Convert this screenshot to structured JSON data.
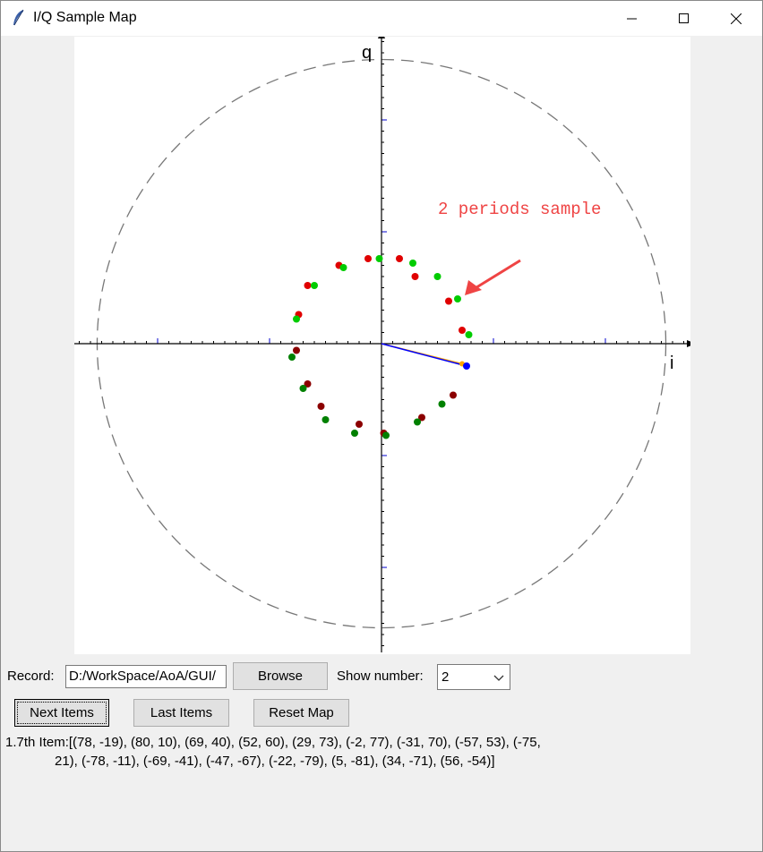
{
  "window": {
    "title": "I/Q Sample Map",
    "icon": "feather-icon",
    "controls": [
      "minimize-icon",
      "maximize-icon",
      "close-icon"
    ]
  },
  "plot": {
    "y_axis_label": "q",
    "x_axis_label": "i",
    "annotation": "2 periods sample",
    "annotation_color": "#ef4444",
    "circle_color": "#777777",
    "tick_color": "#0000cc",
    "vector_color": "#0000ff",
    "vector_tail_color": "#ffa500"
  },
  "chart_data": {
    "type": "scatter",
    "title": "",
    "xlabel": "i",
    "ylabel": "q",
    "xlim": [
      -138,
      138
    ],
    "ylim": [
      -138,
      138
    ],
    "reference_circle_radius": 127,
    "series": [
      {
        "color_group": "red",
        "points": [
          [
            36,
            6
          ],
          [
            30,
            19
          ],
          [
            15,
            30
          ],
          [
            8,
            38
          ],
          [
            -6,
            38
          ],
          [
            -19,
            35
          ],
          [
            -33,
            26
          ],
          [
            -37,
            13
          ],
          [
            -38,
            -3
          ],
          [
            -33,
            -18
          ],
          [
            -27,
            -28
          ],
          [
            -10,
            -36
          ],
          [
            1,
            -40
          ],
          [
            18,
            -33
          ],
          [
            32,
            -23
          ]
        ]
      },
      {
        "color_group": "green",
        "points": [
          [
            39,
            4
          ],
          [
            34,
            20
          ],
          [
            25,
            30
          ],
          [
            14,
            36
          ],
          [
            -1,
            38
          ],
          [
            -17,
            34
          ],
          [
            -30,
            26
          ],
          [
            -38,
            11
          ],
          [
            -40,
            -6
          ],
          [
            -35,
            -20
          ],
          [
            -25,
            -34
          ],
          [
            -12,
            -40
          ],
          [
            2,
            -41
          ],
          [
            16,
            -35
          ],
          [
            27,
            -27
          ]
        ]
      }
    ],
    "vector": {
      "from": [
        0,
        0
      ],
      "to": [
        38,
        -10
      ]
    }
  },
  "controls": {
    "record_label": "Record:",
    "record_value": "D:/WorkSpace/AoA/GUI/",
    "browse_label": "Browse",
    "show_number_label": "Show number:",
    "show_number_value": "2",
    "next_items_label": "Next Items",
    "last_items_label": "Last Items",
    "reset_map_label": "Reset Map"
  },
  "info": {
    "line1": "1.7th Item:[(78, -19), (80, 10), (69, 40), (52, 60), (29, 73), (-2, 77), (-31, 70), (-57, 53), (-75,",
    "line2": "21), (-78, -11), (-69, -41), (-47, -67), (-22, -79), (5, -81), (34, -71), (56, -54)]"
  }
}
